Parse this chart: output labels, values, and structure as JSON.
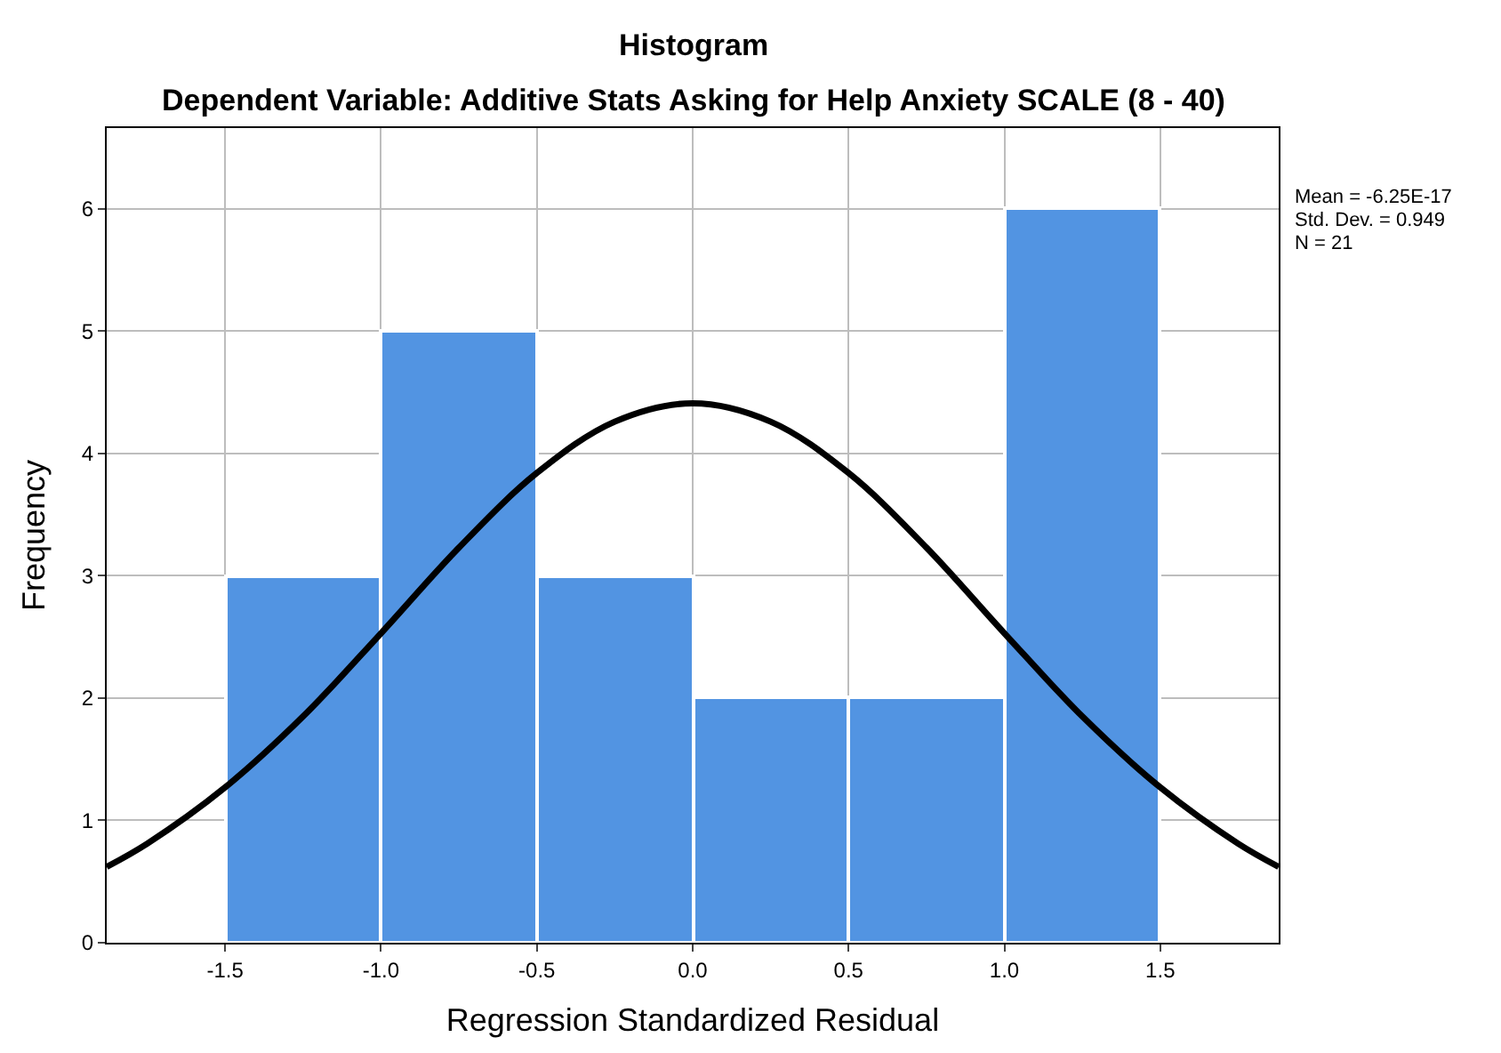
{
  "chart_data": {
    "type": "histogram",
    "title": "Histogram",
    "subtitle": "Dependent Variable: Additive Stats Asking for Help Anxiety SCALE (8 - 40)",
    "xlabel": "Regression Standardized Residual",
    "ylabel": "Frequency",
    "bins": [
      -1.5,
      -1.0,
      -0.5,
      0.0,
      0.5,
      1.0,
      1.5
    ],
    "values": [
      3,
      5,
      3,
      2,
      2,
      6
    ],
    "color": "#5294e2",
    "series": [
      {
        "type": "line",
        "color": "#000000",
        "x": [
          -1.88,
          -1.75,
          -1.5,
          -1.25,
          -1.0,
          -0.75,
          -0.5,
          -0.25,
          0.0,
          0.25,
          0.5,
          0.75,
          1.0,
          1.25,
          1.5,
          1.75,
          1.88
        ],
        "values": [
          0.62,
          0.81,
          1.27,
          1.85,
          2.53,
          3.23,
          3.84,
          4.26,
          4.41,
          4.26,
          3.84,
          3.23,
          2.53,
          1.85,
          1.27,
          0.81,
          0.62
        ]
      }
    ],
    "xlim": [
      -1.88,
      1.88
    ],
    "ylim": [
      0,
      6.66
    ],
    "xticks": [
      {
        "value": -1.5,
        "label": "-1.5"
      },
      {
        "value": -1.0,
        "label": "-1.0"
      },
      {
        "value": -0.5,
        "label": "-0.5"
      },
      {
        "value": 0,
        "label": "0.0"
      },
      {
        "value": 0.5,
        "label": "0.5"
      },
      {
        "value": 1.0,
        "label": "1.0"
      },
      {
        "value": 1.5,
        "label": "1.5"
      }
    ],
    "yticks": [
      0,
      1,
      2,
      3,
      4,
      5,
      6
    ],
    "annotations": [
      "Mean = -6.25E-17",
      "Std. Dev. = 0.949",
      "N = 21"
    ],
    "grid": true,
    "marker": "none",
    "line_style": "solid"
  }
}
